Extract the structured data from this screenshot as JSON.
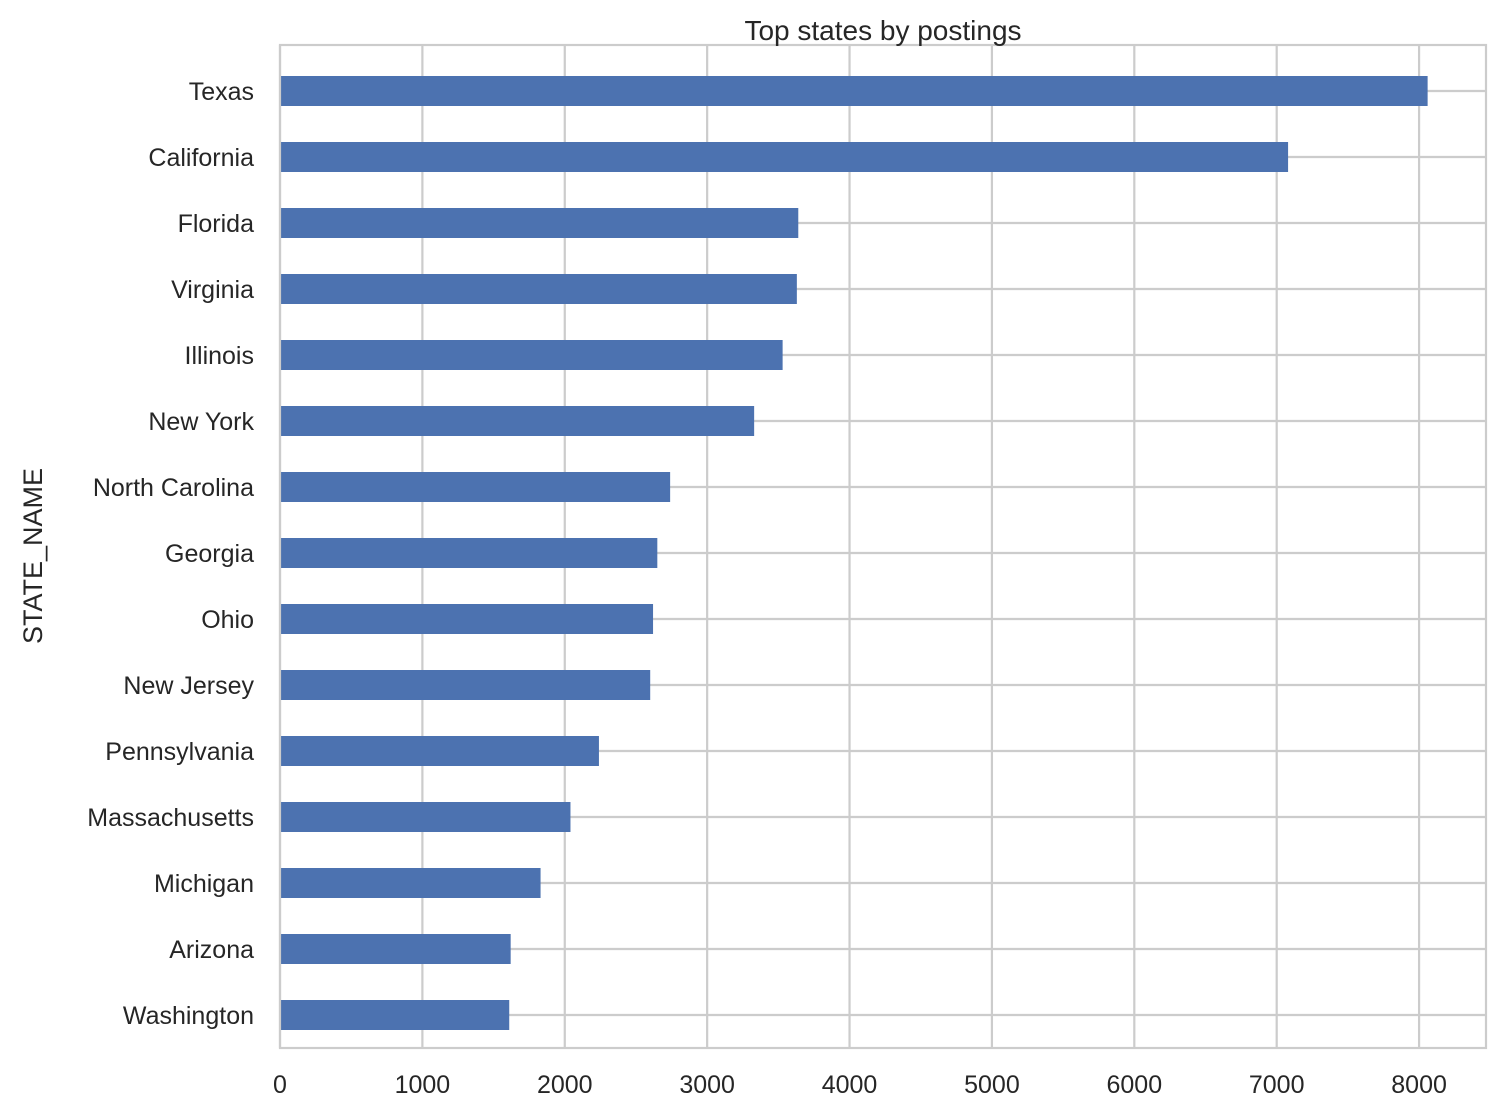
{
  "chart_data": {
    "type": "bar",
    "orientation": "horizontal",
    "title": "Top states by postings",
    "xlabel": "",
    "ylabel": "STATE_NAME",
    "categories": [
      "Texas",
      "California",
      "Florida",
      "Virginia",
      "Illinois",
      "New York",
      "North Carolina",
      "Georgia",
      "Ohio",
      "New Jersey",
      "Pennsylvania",
      "Massachusetts",
      "Michigan",
      "Arizona",
      "Washington"
    ],
    "values": [
      8060,
      7080,
      3640,
      3630,
      3530,
      3330,
      2740,
      2650,
      2620,
      2600,
      2240,
      2040,
      1830,
      1620,
      1610
    ],
    "xlim": [
      0,
      8470
    ],
    "xticks": [
      0,
      1000,
      2000,
      3000,
      4000,
      5000,
      6000,
      7000,
      8000
    ],
    "grid": true,
    "bar_color": "#4c72b0",
    "grid_color": "#cccccc",
    "text_color": "#262626"
  }
}
